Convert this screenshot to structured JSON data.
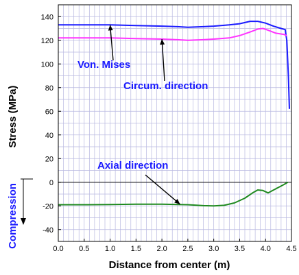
{
  "chart_data": {
    "type": "line",
    "xlabel": "Distance from center (m)",
    "ylabel": "Stress (MPa)",
    "side_label": "Compression",
    "xlim": [
      0,
      4.5
    ],
    "ylim": [
      -50,
      150
    ],
    "xticks": [
      "0.0",
      "0.5",
      "1.0",
      "1.5",
      "2.0",
      "2.5",
      "3.0",
      "3.5",
      "4.0",
      "4.5"
    ],
    "yticks": [
      "-40",
      "-20",
      "0",
      "20",
      "40",
      "60",
      "80",
      "100",
      "120",
      "140"
    ],
    "grid": true,
    "colors": {
      "von_mises": "#1a1aff",
      "circum": "#ff33ff",
      "axial": "#1f8a1f",
      "grid": "#b8b8e0"
    },
    "series": [
      {
        "name": "Von. Mises",
        "x": [
          0,
          0.5,
          1.0,
          1.5,
          2.0,
          2.3,
          2.5,
          2.8,
          3.0,
          3.3,
          3.5,
          3.7,
          3.85,
          4.0,
          4.15,
          4.3,
          4.38,
          4.41,
          4.44,
          4.46
        ],
        "y": [
          133,
          133,
          133,
          132.5,
          132,
          131.5,
          131,
          131.5,
          132,
          133,
          134,
          136,
          136,
          134.5,
          132,
          130,
          129,
          120,
          90,
          62
        ]
      },
      {
        "name": "Circum. direction",
        "x": [
          0,
          0.5,
          1.0,
          1.5,
          2.0,
          2.3,
          2.5,
          2.8,
          3.0,
          3.3,
          3.5,
          3.7,
          3.85,
          3.95,
          4.05,
          4.2,
          4.35,
          4.41
        ],
        "y": [
          122,
          122,
          122,
          121.5,
          121,
          120.5,
          120,
          120.5,
          121,
          122,
          124,
          127,
          129.5,
          130,
          128.5,
          126,
          125,
          124
        ]
      },
      {
        "name": "Axial direction",
        "x": [
          0,
          0.5,
          1.0,
          1.5,
          2.0,
          2.5,
          2.8,
          3.0,
          3.2,
          3.4,
          3.6,
          3.75,
          3.85,
          3.95,
          4.05,
          4.2,
          4.35,
          4.43
        ],
        "y": [
          -19,
          -19,
          -18.8,
          -18.6,
          -18.5,
          -19,
          -19.8,
          -20,
          -19.5,
          -17.5,
          -13.5,
          -9,
          -6.5,
          -7,
          -9,
          -5.5,
          -2,
          0
        ]
      }
    ],
    "annotations": [
      {
        "text": "Von. Mises",
        "series": "Von. Mises",
        "point": [
          1.0,
          133
        ]
      },
      {
        "text": "Circum. direction",
        "series": "Circum. direction",
        "point": [
          2.0,
          121
        ]
      },
      {
        "text": "Axial direction",
        "series": "Axial direction",
        "point": [
          2.35,
          -18.6
        ]
      }
    ]
  }
}
